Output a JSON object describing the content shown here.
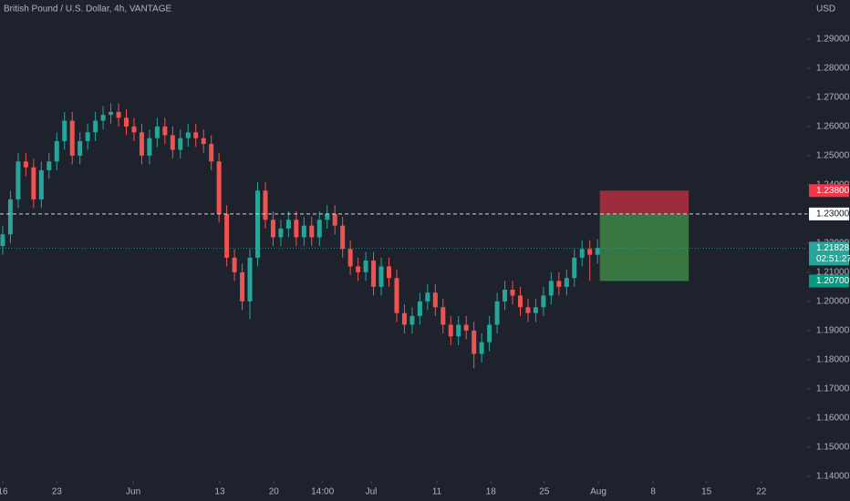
{
  "chart_data": {
    "type": "candlestick",
    "title": "British Pound / U.S. Dollar, 4h, VANTAGE",
    "currency": "USD",
    "x": [
      0,
      1,
      2,
      3,
      4,
      5,
      6,
      7,
      8,
      9,
      10,
      11,
      12,
      13,
      14,
      15,
      16,
      17,
      18,
      19,
      20,
      21,
      22,
      23,
      24,
      25,
      26,
      27,
      28,
      29,
      30,
      31,
      32,
      33,
      34,
      35,
      36,
      37,
      38,
      39,
      40,
      41,
      42,
      43,
      44,
      45,
      46,
      47,
      48,
      49,
      50,
      51,
      52,
      53,
      54,
      55,
      56,
      57,
      58,
      59,
      60,
      61,
      62,
      63,
      64,
      65,
      66,
      67,
      68,
      69,
      70,
      71,
      72,
      73,
      74,
      75,
      76,
      77
    ],
    "open": [
      1.219,
      1.223,
      1.235,
      1.248,
      1.246,
      1.235,
      1.245,
      1.248,
      1.255,
      1.262,
      1.25,
      1.255,
      1.258,
      1.262,
      1.264,
      1.265,
      1.263,
      1.26,
      1.258,
      1.25,
      1.256,
      1.26,
      1.257,
      1.252,
      1.256,
      1.258,
      1.256,
      1.254,
      1.248,
      1.23,
      1.215,
      1.21,
      1.2,
      1.215,
      1.238,
      1.228,
      1.222,
      1.225,
      1.228,
      1.222,
      1.226,
      1.222,
      1.228,
      1.23,
      1.226,
      1.218,
      1.212,
      1.21,
      1.214,
      1.205,
      1.212,
      1.208,
      1.196,
      1.192,
      1.195,
      1.2,
      1.203,
      1.198,
      1.192,
      1.188,
      1.192,
      1.19,
      1.182,
      1.186,
      1.192,
      1.2,
      1.204,
      1.202,
      1.198,
      1.196,
      1.198,
      1.202,
      1.207,
      1.205,
      1.208,
      1.215,
      1.218,
      1.216
    ],
    "high": [
      1.226,
      1.238,
      1.251,
      1.251,
      1.249,
      1.248,
      1.251,
      1.258,
      1.265,
      1.265,
      1.258,
      1.261,
      1.265,
      1.267,
      1.268,
      1.268,
      1.266,
      1.263,
      1.261,
      1.259,
      1.263,
      1.263,
      1.26,
      1.259,
      1.261,
      1.261,
      1.259,
      1.257,
      1.251,
      1.233,
      1.218,
      1.213,
      1.218,
      1.241,
      1.241,
      1.231,
      1.228,
      1.231,
      1.231,
      1.229,
      1.229,
      1.231,
      1.233,
      1.233,
      1.229,
      1.221,
      1.215,
      1.217,
      1.217,
      1.215,
      1.215,
      1.211,
      1.199,
      1.198,
      1.203,
      1.206,
      1.206,
      1.201,
      1.195,
      1.195,
      1.195,
      1.193,
      1.189,
      1.195,
      1.203,
      1.207,
      1.207,
      1.205,
      1.201,
      1.201,
      1.205,
      1.21,
      1.21,
      1.211,
      1.218,
      1.221,
      1.221,
      1.2213
    ],
    "low": [
      1.216,
      1.22,
      1.232,
      1.243,
      1.232,
      1.232,
      1.242,
      1.245,
      1.252,
      1.247,
      1.247,
      1.252,
      1.255,
      1.259,
      1.261,
      1.26,
      1.257,
      1.255,
      1.247,
      1.247,
      1.253,
      1.254,
      1.249,
      1.249,
      1.253,
      1.253,
      1.251,
      1.245,
      1.227,
      1.212,
      1.207,
      1.197,
      1.194,
      1.212,
      1.225,
      1.219,
      1.219,
      1.222,
      1.219,
      1.219,
      1.219,
      1.219,
      1.225,
      1.223,
      1.215,
      1.209,
      1.207,
      1.207,
      1.202,
      1.202,
      1.205,
      1.193,
      1.189,
      1.189,
      1.192,
      1.197,
      1.195,
      1.189,
      1.185,
      1.185,
      1.187,
      1.177,
      1.179,
      1.183,
      1.189,
      1.197,
      1.199,
      1.195,
      1.193,
      1.193,
      1.195,
      1.199,
      1.202,
      1.202,
      1.205,
      1.212,
      1.207,
      1.213
    ],
    "close": [
      1.223,
      1.235,
      1.248,
      1.246,
      1.235,
      1.245,
      1.248,
      1.255,
      1.262,
      1.25,
      1.255,
      1.258,
      1.262,
      1.264,
      1.265,
      1.263,
      1.26,
      1.258,
      1.25,
      1.256,
      1.26,
      1.257,
      1.252,
      1.256,
      1.258,
      1.256,
      1.254,
      1.248,
      1.23,
      1.215,
      1.21,
      1.2,
      1.215,
      1.238,
      1.228,
      1.222,
      1.225,
      1.228,
      1.222,
      1.226,
      1.222,
      1.228,
      1.23,
      1.226,
      1.218,
      1.212,
      1.21,
      1.214,
      1.205,
      1.212,
      1.208,
      1.196,
      1.192,
      1.195,
      1.2,
      1.203,
      1.198,
      1.192,
      1.188,
      1.192,
      1.19,
      1.182,
      1.186,
      1.192,
      1.2,
      1.204,
      1.202,
      1.198,
      1.196,
      1.198,
      1.202,
      1.207,
      1.205,
      1.208,
      1.215,
      1.218,
      1.216,
      1.2183
    ],
    "up_color": "#26a69a",
    "down_color": "#ef5350",
    "xlim": [
      -0.35,
      104.13
    ],
    "ylim": [
      1.1384,
      1.3034
    ],
    "xticks": [
      {
        "value": 0,
        "label": "16"
      },
      {
        "value": 7,
        "label": "23"
      },
      {
        "value": 16.9,
        "label": "Jun"
      },
      {
        "value": 28.1,
        "label": "13"
      },
      {
        "value": 35.1,
        "label": "20"
      },
      {
        "value": 41.4,
        "label": "14:00"
      },
      {
        "value": 47.7,
        "label": "Jul"
      },
      {
        "value": 56.2,
        "label": "11"
      },
      {
        "value": 63.2,
        "label": "18"
      },
      {
        "value": 70.1,
        "label": "25"
      },
      {
        "value": 77.1,
        "label": "Aug"
      },
      {
        "value": 84.2,
        "label": "8"
      },
      {
        "value": 91.1,
        "label": "15"
      },
      {
        "value": 98.2,
        "label": "22"
      }
    ],
    "yticks": [
      {
        "value": 1.14,
        "label": "1.14000"
      },
      {
        "value": 1.15,
        "label": "1.15000"
      },
      {
        "value": 1.16,
        "label": "1.16000"
      },
      {
        "value": 1.17,
        "label": "1.17000"
      },
      {
        "value": 1.18,
        "label": "1.18000"
      },
      {
        "value": 1.19,
        "label": "1.19000"
      },
      {
        "value": 1.2,
        "label": "1.20000"
      },
      {
        "value": 1.21,
        "label": "1.21000"
      },
      {
        "value": 1.22,
        "label": "1.22000"
      },
      {
        "value": 1.23,
        "label": "1.23000"
      },
      {
        "value": 1.24,
        "label": "1.24000"
      },
      {
        "value": 1.25,
        "label": "1.25000"
      },
      {
        "value": 1.26,
        "label": "1.26000"
      },
      {
        "value": 1.27,
        "label": "1.27000"
      },
      {
        "value": 1.28,
        "label": "1.28000"
      },
      {
        "value": 1.29,
        "label": "1.29000"
      }
    ],
    "level": {
      "value": 1.23,
      "label": "1.23000"
    },
    "stop": {
      "value": 1.238,
      "label": "1.23800",
      "color": "#f23645"
    },
    "target": {
      "value": 1.207,
      "label": "1.20700",
      "color": "#089981"
    },
    "last_price": {
      "value": 1.21828,
      "label": "1.21828",
      "countdown": "02:51:27"
    },
    "position_x": [
      77.3,
      88.8
    ]
  }
}
